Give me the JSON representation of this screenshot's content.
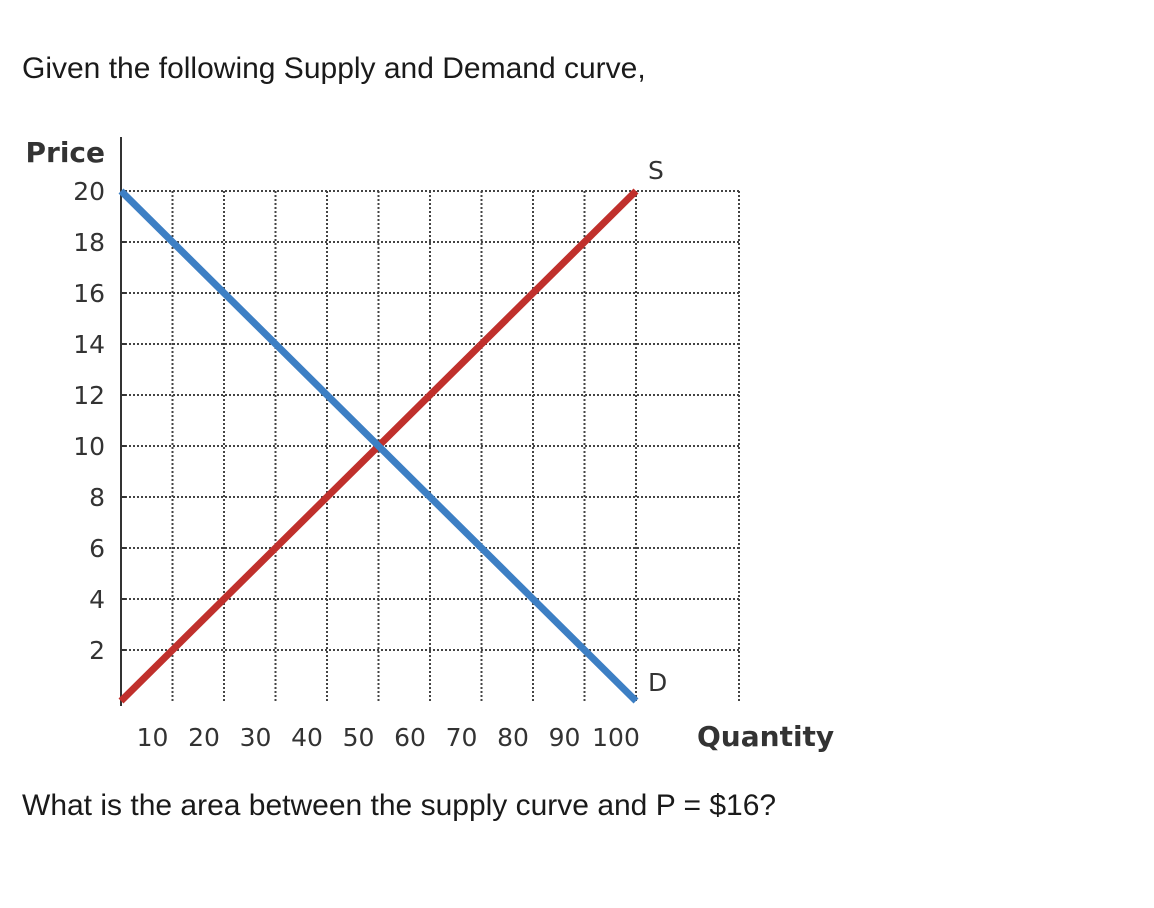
{
  "question": {
    "intro": "Given the following Supply and Demand curve,",
    "prompt": "What is the area between the supply curve and P = $16?"
  },
  "chart_data": {
    "type": "line",
    "ylabel": "Price",
    "xlabel": "Quantity",
    "xlim": [
      0,
      120
    ],
    "ylim": [
      0,
      20
    ],
    "xticks": [
      10,
      20,
      30,
      40,
      50,
      60,
      70,
      80,
      90,
      100
    ],
    "yticks": [
      2,
      4,
      6,
      8,
      10,
      12,
      14,
      16,
      18,
      20
    ],
    "grid": "dotted",
    "series": [
      {
        "name": "S",
        "color": "#c0302c",
        "x": [
          0,
          100
        ],
        "y": [
          0,
          20
        ]
      },
      {
        "name": "D",
        "color": "#3d7fc4",
        "x": [
          0,
          100
        ],
        "y": [
          20,
          0
        ]
      }
    ]
  }
}
